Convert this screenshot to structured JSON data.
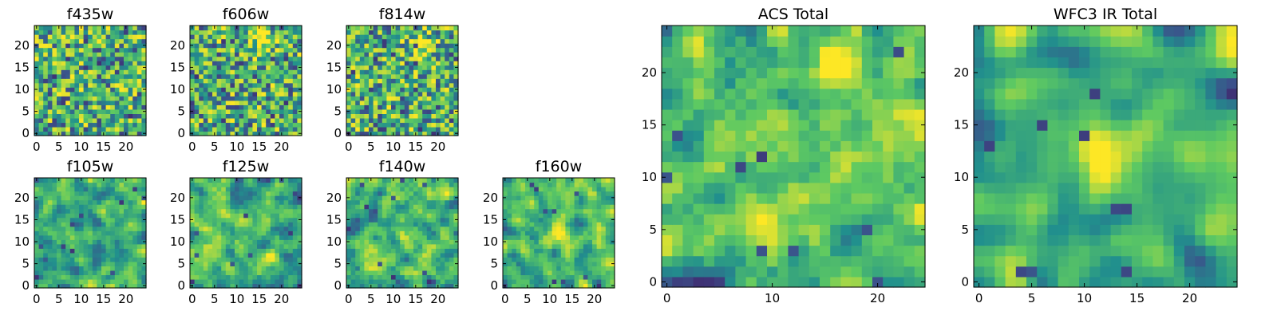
{
  "figure": {
    "colormap": {
      "name": "viridis",
      "stops": [
        "#440154",
        "#3b528b",
        "#21908d",
        "#5dc962",
        "#fde725"
      ]
    }
  },
  "chart_data": [
    {
      "type": "heatmap",
      "title": "f435w",
      "size": 25,
      "xlim": [
        0,
        24
      ],
      "ylim": [
        0,
        24
      ],
      "xticks": [
        "0",
        "5",
        "10",
        "15",
        "20"
      ],
      "yticks": [
        "0",
        "5",
        "10",
        "15",
        "20"
      ],
      "texture": "fine",
      "seed": 11,
      "bright_spot": null
    },
    {
      "type": "heatmap",
      "title": "f606w",
      "size": 25,
      "xlim": [
        0,
        24
      ],
      "ylim": [
        0,
        24
      ],
      "xticks": [
        "0",
        "5",
        "10",
        "15",
        "20"
      ],
      "yticks": [
        "0",
        "5",
        "10",
        "15",
        "20"
      ],
      "texture": "fine",
      "seed": 23,
      "bright_spot": [
        16,
        21
      ]
    },
    {
      "type": "heatmap",
      "title": "f814w",
      "size": 25,
      "xlim": [
        0,
        24
      ],
      "ylim": [
        0,
        24
      ],
      "xticks": [
        "0",
        "5",
        "10",
        "15",
        "20"
      ],
      "yticks": [
        "0",
        "5",
        "10",
        "15",
        "20"
      ],
      "texture": "fine",
      "seed": 37,
      "bright_spot": [
        16,
        20
      ]
    },
    {
      "type": "heatmap",
      "title": "f105w",
      "size": 25,
      "xlim": [
        0,
        24
      ],
      "ylim": [
        0,
        24
      ],
      "xticks": [
        "0",
        "5",
        "10",
        "15",
        "20"
      ],
      "yticks": [
        "0",
        "5",
        "10",
        "15",
        "20"
      ],
      "texture": "smooth",
      "seed": 41,
      "bright_spot": null
    },
    {
      "type": "heatmap",
      "title": "f125w",
      "size": 25,
      "xlim": [
        0,
        24
      ],
      "ylim": [
        0,
        24
      ],
      "xticks": [
        "0",
        "5",
        "10",
        "15",
        "20"
      ],
      "yticks": [
        "0",
        "5",
        "10",
        "15",
        "20"
      ],
      "texture": "smooth",
      "seed": 53,
      "bright_spot": null
    },
    {
      "type": "heatmap",
      "title": "f140w",
      "size": 25,
      "xlim": [
        0,
        24
      ],
      "ylim": [
        0,
        24
      ],
      "xticks": [
        "0",
        "5",
        "10",
        "15",
        "20"
      ],
      "yticks": [
        "0",
        "5",
        "10",
        "15",
        "20"
      ],
      "texture": "smooth",
      "seed": 67,
      "bright_spot": null
    },
    {
      "type": "heatmap",
      "title": "f160w",
      "size": 25,
      "xlim": [
        0,
        24
      ],
      "ylim": [
        0,
        24
      ],
      "xticks": [
        "0",
        "5",
        "10",
        "15",
        "20"
      ],
      "yticks": [
        "0",
        "5",
        "10",
        "15",
        "20"
      ],
      "texture": "smooth",
      "seed": 79,
      "bright_spot": [
        12,
        12
      ]
    },
    {
      "type": "heatmap",
      "title": "ACS Total",
      "size": 25,
      "xlim": [
        0,
        24
      ],
      "ylim": [
        0,
        24
      ],
      "xticks": [
        "0",
        "10",
        "20"
      ],
      "yticks": [
        "0",
        "5",
        "10",
        "15",
        "20"
      ],
      "texture": "medium",
      "seed": 97,
      "bright_spot": [
        16,
        21
      ]
    },
    {
      "type": "heatmap",
      "title": "WFC3 IR Total",
      "size": 25,
      "xlim": [
        0,
        24
      ],
      "ylim": [
        0,
        24
      ],
      "xticks": [
        "0",
        "5",
        "10",
        "15",
        "20"
      ],
      "yticks": [
        "0",
        "5",
        "10",
        "15",
        "20"
      ],
      "texture": "smooth-wide",
      "seed": 113,
      "bright_spot": [
        12,
        12
      ]
    }
  ]
}
